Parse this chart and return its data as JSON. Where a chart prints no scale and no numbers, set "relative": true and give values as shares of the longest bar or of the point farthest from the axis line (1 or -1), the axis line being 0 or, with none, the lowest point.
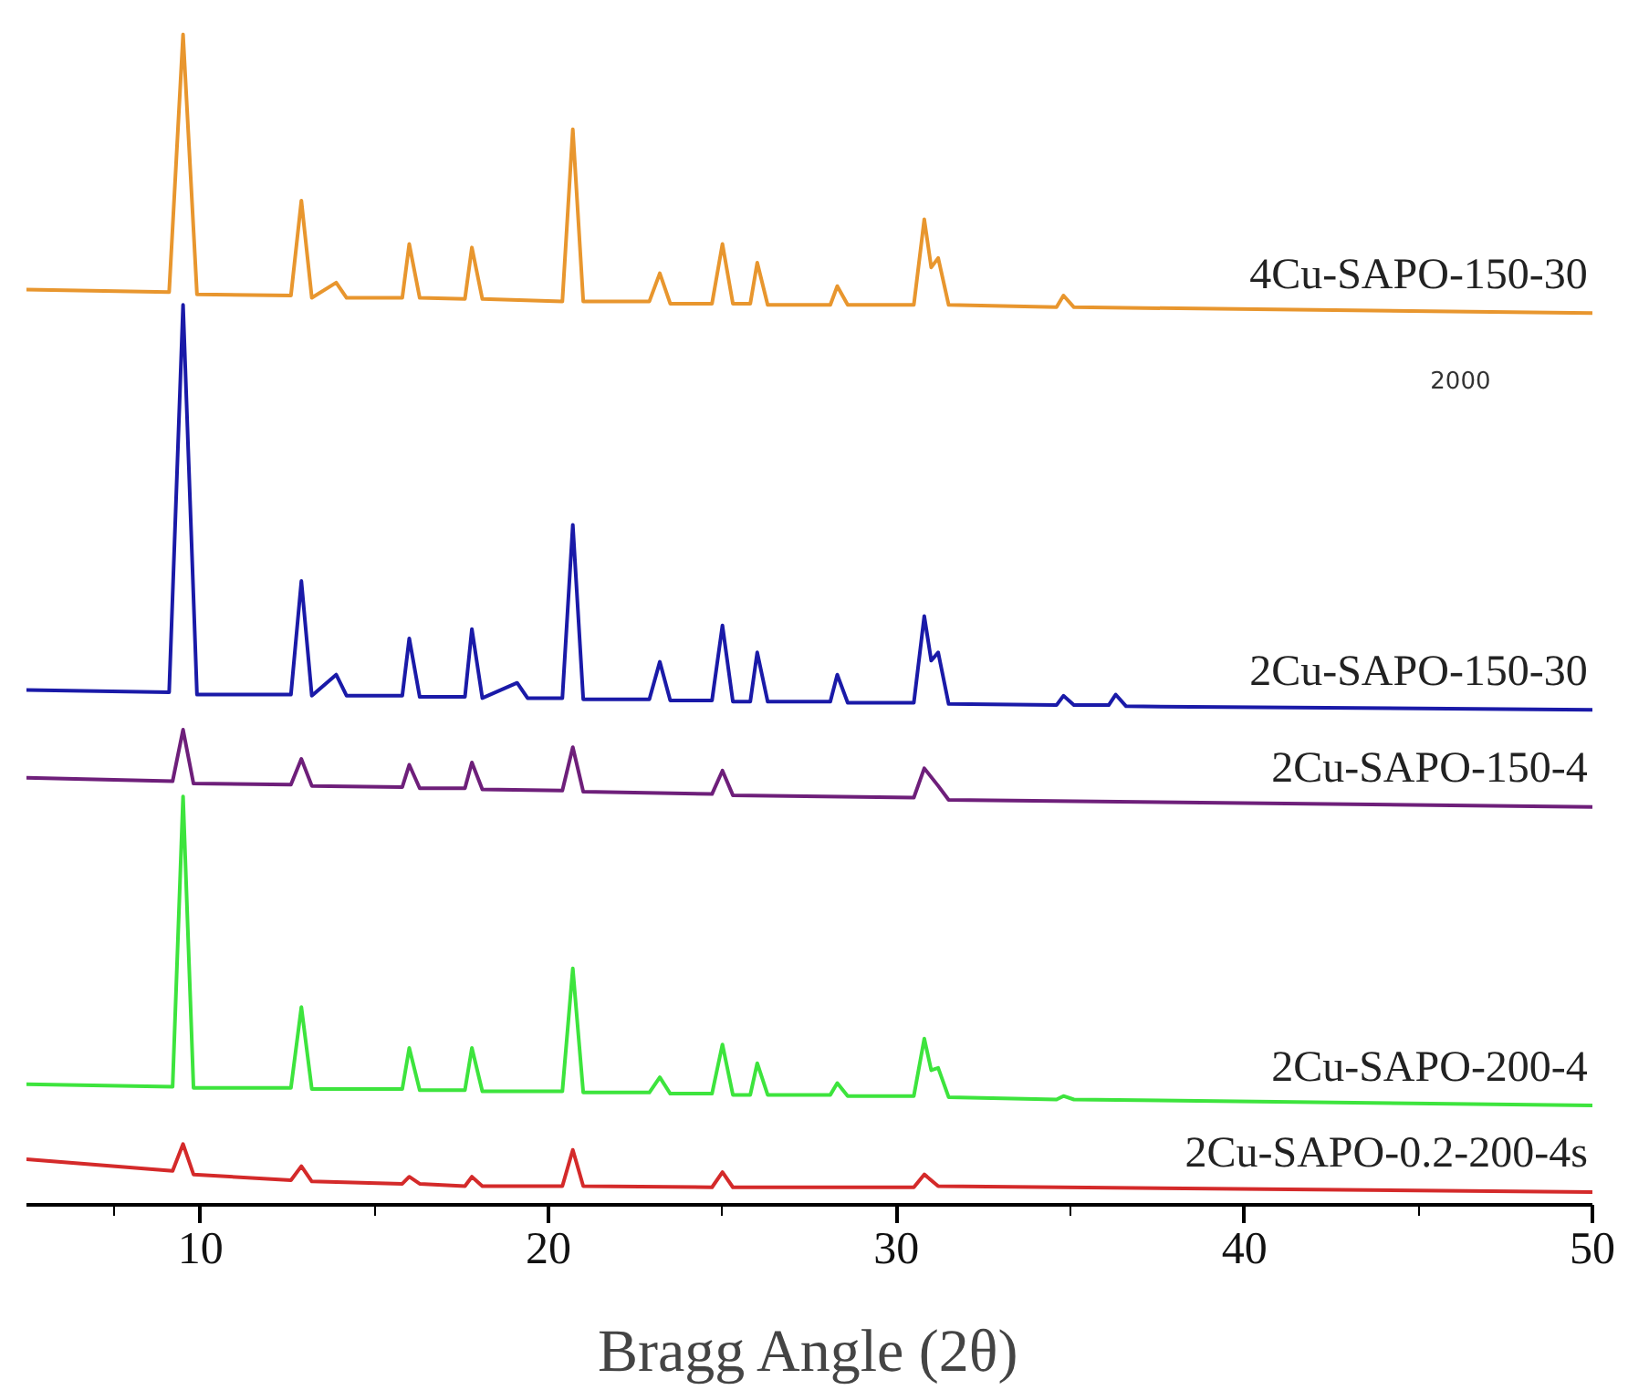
{
  "chart_data": {
    "type": "line",
    "relative": true,
    "xlabel": "Bragg Angle (2θ)",
    "xlim": [
      5,
      50
    ],
    "xticks": [
      10,
      20,
      30,
      40,
      50
    ],
    "grid": false,
    "legend": false,
    "marker": "none",
    "line_style": "solid",
    "annotations": [
      "2000"
    ],
    "series": [
      {
        "name": "4Cu-SAPO-150-30",
        "color": "#e8962e",
        "x": [
          5,
          9.1,
          9.5,
          9.9,
          12.6,
          12.9,
          13.2,
          13.9,
          14.2,
          15.8,
          16.0,
          16.3,
          17.6,
          17.8,
          18.1,
          20.4,
          20.7,
          21.0,
          22.9,
          23.2,
          23.5,
          24.7,
          25.0,
          25.3,
          25.8,
          26.0,
          26.3,
          28.1,
          28.3,
          28.6,
          30.5,
          30.8,
          31.0,
          31.2,
          31.5,
          34.6,
          34.8,
          35.1,
          50
        ],
        "values": [
          0.782,
          0.78,
          1.0,
          0.778,
          0.777,
          0.858,
          0.775,
          0.788,
          0.775,
          0.775,
          0.821,
          0.775,
          0.774,
          0.818,
          0.774,
          0.772,
          0.919,
          0.772,
          0.772,
          0.796,
          0.77,
          0.77,
          0.821,
          0.77,
          0.77,
          0.805,
          0.769,
          0.769,
          0.785,
          0.769,
          0.769,
          0.842,
          0.801,
          0.809,
          0.769,
          0.767,
          0.777,
          0.767,
          0.762
        ]
      },
      {
        "name": "2Cu-SAPO-150-30",
        "color": "#1a1aa8",
        "x": [
          5,
          9.1,
          9.5,
          9.9,
          12.6,
          12.9,
          13.2,
          13.9,
          14.2,
          15.8,
          16.0,
          16.3,
          17.6,
          17.8,
          18.1,
          19.1,
          19.4,
          20.4,
          20.7,
          21.0,
          22.9,
          23.2,
          23.5,
          24.7,
          25.0,
          25.3,
          25.8,
          26.0,
          26.3,
          28.1,
          28.3,
          28.6,
          30.5,
          30.8,
          31.0,
          31.2,
          31.5,
          34.6,
          34.8,
          35.1,
          36.1,
          36.3,
          36.6,
          50
        ],
        "values": [
          0.44,
          0.438,
          0.769,
          0.436,
          0.436,
          0.533,
          0.435,
          0.453,
          0.435,
          0.435,
          0.484,
          0.434,
          0.434,
          0.492,
          0.433,
          0.446,
          0.433,
          0.433,
          0.581,
          0.432,
          0.432,
          0.464,
          0.431,
          0.431,
          0.495,
          0.43,
          0.43,
          0.472,
          0.43,
          0.43,
          0.453,
          0.429,
          0.429,
          0.503,
          0.465,
          0.472,
          0.428,
          0.427,
          0.435,
          0.427,
          0.427,
          0.436,
          0.426,
          0.423
        ]
      },
      {
        "name": "2Cu-SAPO-150-4",
        "color": "#6e1f7a",
        "x": [
          5,
          9.2,
          9.5,
          9.8,
          12.6,
          12.9,
          13.2,
          15.8,
          16.0,
          16.3,
          17.6,
          17.8,
          18.1,
          20.4,
          20.7,
          21.0,
          24.7,
          25.0,
          25.3,
          30.5,
          30.8,
          31.2,
          31.5,
          50
        ],
        "values": [
          0.365,
          0.362,
          0.406,
          0.36,
          0.359,
          0.381,
          0.358,
          0.357,
          0.376,
          0.356,
          0.356,
          0.378,
          0.355,
          0.354,
          0.391,
          0.353,
          0.351,
          0.371,
          0.35,
          0.348,
          0.373,
          0.358,
          0.346,
          0.34
        ]
      },
      {
        "name": "2Cu-SAPO-200-4",
        "color": "#3de43d",
        "x": [
          5,
          9.2,
          9.5,
          9.8,
          12.6,
          12.9,
          13.2,
          15.8,
          16.0,
          16.3,
          17.6,
          17.8,
          18.1,
          20.4,
          20.7,
          21.0,
          22.9,
          23.2,
          23.5,
          24.7,
          25.0,
          25.3,
          25.8,
          26.0,
          26.3,
          28.1,
          28.3,
          28.6,
          30.5,
          30.8,
          31.0,
          31.2,
          31.5,
          34.6,
          34.8,
          35.1,
          50
        ],
        "values": [
          0.103,
          0.101,
          0.349,
          0.1,
          0.1,
          0.169,
          0.099,
          0.099,
          0.134,
          0.098,
          0.098,
          0.134,
          0.097,
          0.097,
          0.202,
          0.096,
          0.096,
          0.109,
          0.095,
          0.095,
          0.137,
          0.094,
          0.094,
          0.121,
          0.094,
          0.094,
          0.104,
          0.093,
          0.093,
          0.142,
          0.115,
          0.117,
          0.092,
          0.09,
          0.093,
          0.09,
          0.085
        ]
      },
      {
        "name": "2Cu-SAPO-0.2-200-4s",
        "color": "#d42a2a",
        "x": [
          5,
          9.2,
          9.5,
          9.8,
          12.6,
          12.9,
          13.2,
          15.8,
          16.0,
          16.3,
          17.6,
          17.8,
          18.1,
          20.4,
          20.7,
          21.0,
          24.7,
          25.0,
          25.3,
          30.5,
          30.8,
          31.2,
          50
        ],
        "values": [
          0.039,
          0.029,
          0.052,
          0.026,
          0.021,
          0.033,
          0.02,
          0.018,
          0.024,
          0.018,
          0.016,
          0.024,
          0.016,
          0.016,
          0.047,
          0.016,
          0.015,
          0.028,
          0.015,
          0.015,
          0.026,
          0.016,
          0.011
        ]
      }
    ]
  }
}
